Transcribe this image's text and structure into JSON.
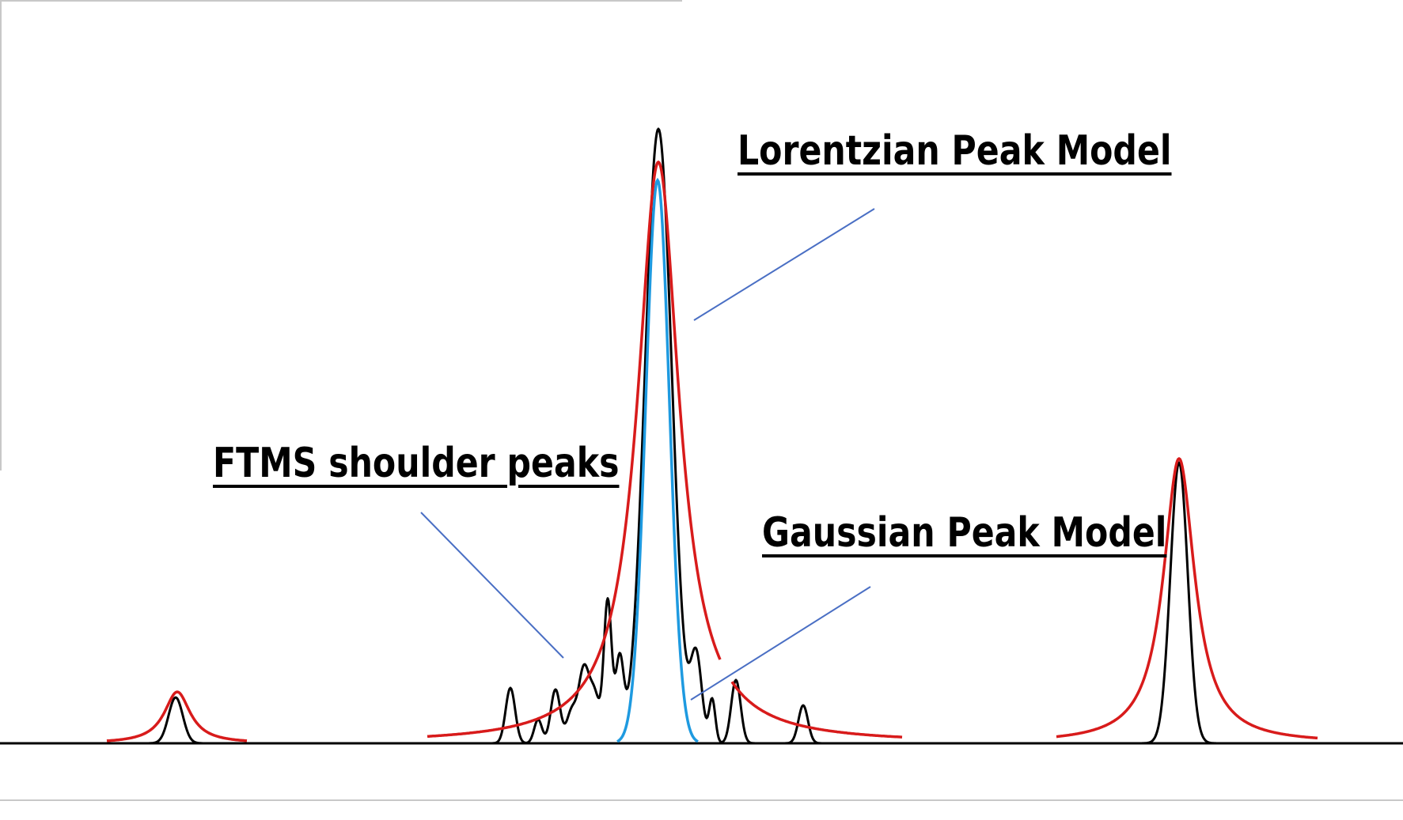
{
  "labels": {
    "lorentzian": "Lorentzian Peak Model",
    "ftms": "FTMS shoulder peaks",
    "gaussian": "Gaussian Peak Model"
  },
  "colors": {
    "measured": "#000000",
    "lorentzian": "#d81b1b",
    "gaussian": "#1e9ae0",
    "pointer": "#4a6fc4",
    "frame": "#c8c8c8",
    "baseline": "#000000"
  }
}
